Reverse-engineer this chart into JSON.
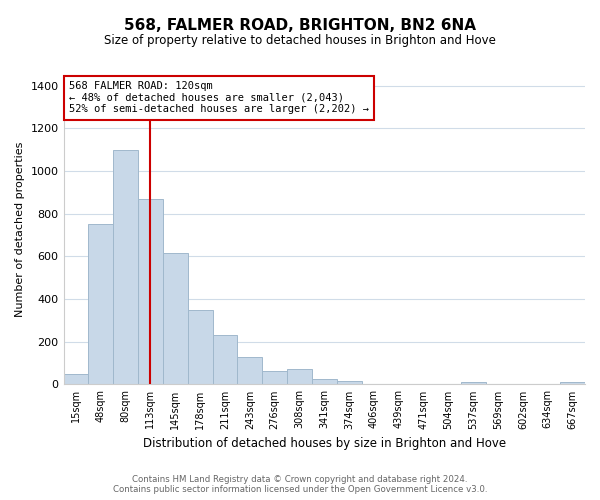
{
  "title": "568, FALMER ROAD, BRIGHTON, BN2 6NA",
  "subtitle": "Size of property relative to detached houses in Brighton and Hove",
  "xlabel": "Distribution of detached houses by size in Brighton and Hove",
  "ylabel": "Number of detached properties",
  "bar_labels": [
    "15sqm",
    "48sqm",
    "80sqm",
    "113sqm",
    "145sqm",
    "178sqm",
    "211sqm",
    "243sqm",
    "276sqm",
    "308sqm",
    "341sqm",
    "374sqm",
    "406sqm",
    "439sqm",
    "471sqm",
    "504sqm",
    "537sqm",
    "569sqm",
    "602sqm",
    "634sqm",
    "667sqm"
  ],
  "bar_heights": [
    50,
    750,
    1100,
    870,
    615,
    350,
    230,
    130,
    65,
    70,
    25,
    18,
    0,
    0,
    0,
    0,
    10,
    0,
    0,
    0,
    10
  ],
  "bar_color": "#c8d8e8",
  "bar_edge_color": "#a0b8cc",
  "vline_x_index": 3,
  "vline_color": "#cc0000",
  "annotation_line1": "568 FALMER ROAD: 120sqm",
  "annotation_line2": "← 48% of detached houses are smaller (2,043)",
  "annotation_line3": "52% of semi-detached houses are larger (2,202) →",
  "annotation_box_color": "#ffffff",
  "annotation_border_color": "#cc0000",
  "ylim": [
    0,
    1450
  ],
  "yticks": [
    0,
    200,
    400,
    600,
    800,
    1000,
    1200,
    1400
  ],
  "footer1": "Contains HM Land Registry data © Crown copyright and database right 2024.",
  "footer2": "Contains public sector information licensed under the Open Government Licence v3.0.",
  "background_color": "#ffffff",
  "grid_color": "#d0dce8"
}
